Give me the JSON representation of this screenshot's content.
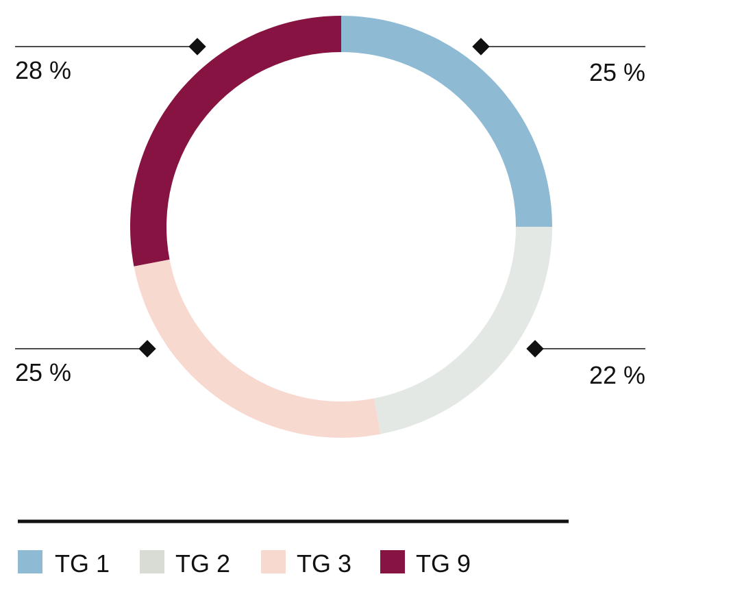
{
  "chart_data": {
    "type": "pie",
    "categories": [
      "TG 1",
      "TG 2",
      "TG 3",
      "TG 9"
    ],
    "values": [
      25,
      22,
      25,
      28
    ],
    "labels": [
      "25 %",
      "22 %",
      "25 %",
      "28 %"
    ],
    "colors": [
      "#8fbad4",
      "#e4e8e4",
      "#f8d9cf",
      "#861342"
    ],
    "legend": {
      "position": "bottom-left",
      "items": [
        {
          "label": "TG 1",
          "color": "#8fbad4"
        },
        {
          "label": "TG 2",
          "color": "#d8dcd5"
        },
        {
          "label": "TG 3",
          "color": "#f8d9cf"
        },
        {
          "label": "TG 9",
          "color": "#861342"
        }
      ]
    },
    "title": "",
    "donut": true
  }
}
